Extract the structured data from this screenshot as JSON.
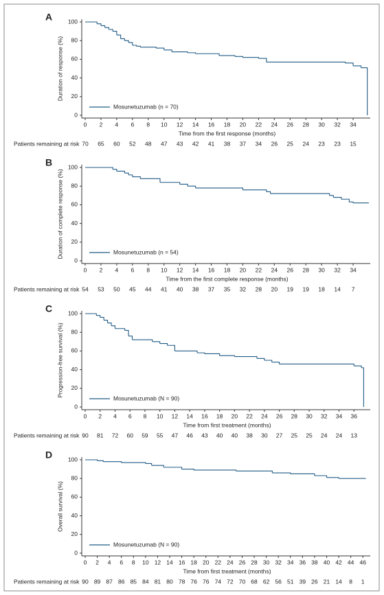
{
  "chart_data": [
    {
      "type": "step",
      "panel_label": "A",
      "xlabel": "Time from the first response (months)",
      "ylabel": "Duration of response (%)",
      "x": [
        0,
        1.5,
        2,
        2.5,
        3,
        3.5,
        4,
        4.5,
        5,
        5.5,
        6,
        6.5,
        7,
        9,
        10,
        11,
        13,
        14,
        17,
        19,
        20,
        22,
        23,
        33,
        34,
        35,
        35.8
      ],
      "series": [
        {
          "name": "Mosunetuzumab (n = 70)",
          "color": "#1f5a85",
          "values": [
            100,
            98,
            96,
            94,
            92,
            90,
            86,
            82,
            80,
            78,
            75,
            74,
            73,
            72,
            70,
            68,
            67,
            66,
            64,
            63,
            62,
            61,
            57,
            56,
            53,
            51,
            0
          ]
        }
      ],
      "xlim": [
        0,
        36
      ],
      "ylim": [
        0,
        100
      ],
      "xticks": [
        0,
        2,
        4,
        6,
        8,
        10,
        12,
        14,
        16,
        18,
        20,
        22,
        24,
        26,
        28,
        30,
        32,
        34
      ],
      "yticks": [
        0,
        20,
        40,
        60,
        80,
        100
      ],
      "risk_label": "Patients remaining at risk",
      "at_risk": [
        70,
        65,
        60,
        52,
        48,
        47,
        43,
        42,
        41,
        38,
        37,
        34,
        26,
        25,
        24,
        23,
        23,
        15
      ]
    },
    {
      "type": "step",
      "panel_label": "B",
      "xlabel": "Time from the first complete response (months)",
      "ylabel": "Duration of complete response (%)",
      "x": [
        0,
        3.5,
        4,
        5,
        5.5,
        6,
        7,
        9.5,
        12,
        13,
        14,
        20,
        23,
        23.5,
        31,
        31.5,
        32.5,
        33.5,
        34,
        36
      ],
      "series": [
        {
          "name": "Mosunetuzumab (n = 54)",
          "color": "#1f5a85",
          "values": [
            100,
            98,
            96,
            94,
            92,
            90,
            88,
            84,
            82,
            80,
            78,
            76,
            74,
            72,
            70,
            68,
            66,
            63,
            62,
            62
          ]
        }
      ],
      "xlim": [
        0,
        36
      ],
      "ylim": [
        0,
        100
      ],
      "xticks": [
        0,
        2,
        4,
        6,
        8,
        10,
        12,
        14,
        16,
        18,
        20,
        22,
        24,
        26,
        28,
        30,
        32,
        34
      ],
      "yticks": [
        0,
        20,
        40,
        60,
        80,
        100
      ],
      "risk_label": "Patients remaining at risk",
      "at_risk": [
        54,
        53,
        50,
        45,
        44,
        41,
        40,
        38,
        37,
        35,
        32,
        28,
        20,
        19,
        19,
        18,
        14,
        7
      ]
    },
    {
      "type": "step",
      "panel_label": "C",
      "xlabel": "Time from first treatment (months)",
      "ylabel": "Progression-free survival (%)",
      "x": [
        0,
        1.5,
        2,
        2.5,
        3,
        3.5,
        4,
        5.3,
        5.8,
        6.3,
        9,
        10,
        11,
        12,
        15,
        16,
        18,
        20,
        23,
        24,
        25,
        26,
        36,
        37,
        37.3
      ],
      "series": [
        {
          "name": "Mosunetuzumab (N = 90)",
          "color": "#1f5a85",
          "values": [
            100,
            98,
            96,
            93,
            90,
            87,
            84,
            82,
            76,
            72,
            70,
            68,
            66,
            60,
            58,
            57,
            55,
            54,
            52,
            50,
            48,
            46,
            44,
            42,
            0
          ]
        }
      ],
      "xlim": [
        0,
        38
      ],
      "ylim": [
        0,
        100
      ],
      "xticks": [
        0,
        2,
        4,
        6,
        8,
        10,
        12,
        14,
        16,
        18,
        20,
        22,
        24,
        26,
        28,
        30,
        32,
        34,
        36
      ],
      "yticks": [
        0,
        20,
        40,
        60,
        80,
        100
      ],
      "risk_label": "Patients remaining at risk",
      "at_risk": [
        90,
        81,
        72,
        60,
        59,
        55,
        47,
        46,
        43,
        40,
        40,
        38,
        30,
        27,
        25,
        25,
        24,
        24,
        13
      ]
    },
    {
      "type": "step",
      "panel_label": "D",
      "xlabel": "Time from first treatment (months)",
      "ylabel": "Overall survival (%)",
      "x": [
        0,
        2,
        3,
        6,
        10,
        11,
        13,
        16,
        18,
        25,
        31,
        34,
        38,
        40,
        42,
        46.5
      ],
      "series": [
        {
          "name": "Mosunetuzumab (N = 90)",
          "color": "#1f5a85",
          "values": [
            100,
            99,
            98,
            97,
            96,
            94,
            92,
            90,
            89,
            88,
            86,
            85,
            83,
            81,
            80,
            80
          ]
        }
      ],
      "xlim": [
        0,
        47
      ],
      "ylim": [
        0,
        100
      ],
      "xticks": [
        0,
        2,
        4,
        6,
        8,
        10,
        12,
        14,
        16,
        18,
        20,
        22,
        24,
        26,
        28,
        30,
        32,
        34,
        36,
        38,
        40,
        42,
        44,
        46
      ],
      "yticks": [
        0,
        20,
        40,
        60,
        80,
        100
      ],
      "risk_label": "Patients remaining at risk",
      "at_risk": [
        90,
        89,
        87,
        86,
        85,
        84,
        81,
        80,
        78,
        76,
        76,
        74,
        72,
        70,
        68,
        62,
        56,
        51,
        39,
        26,
        21,
        14,
        8,
        1
      ]
    }
  ]
}
